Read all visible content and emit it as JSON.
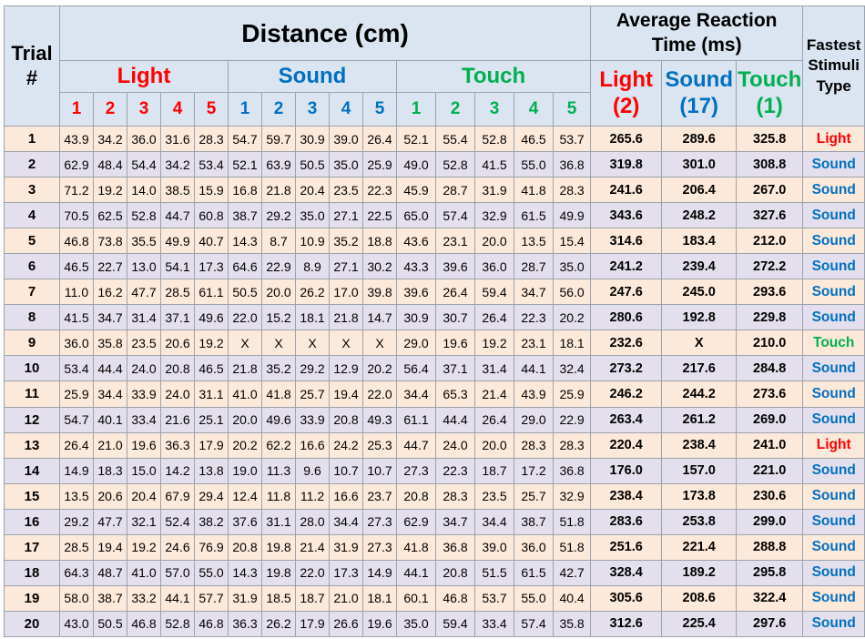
{
  "colors": {
    "light": "#ff0000",
    "sound": "#0070c0",
    "touch": "#00b050",
    "header_bg": "#dbe5f1",
    "row_odd": "#fde9d9",
    "row_even": "#e4dfec"
  },
  "header": {
    "trial": "Trial\n#",
    "distance": "Distance (cm)",
    "avg_reaction": "Average Reaction\nTime (ms)",
    "fastest": "Fastest\nStimuli\nType",
    "groups": [
      "Light",
      "Sound",
      "Touch"
    ],
    "sub_numbers": [
      "1",
      "2",
      "3",
      "4",
      "5"
    ],
    "avg_sub": [
      "Light\n(2)",
      "Sound\n(17)",
      "Touch\n(1)"
    ]
  },
  "rows": [
    {
      "trial": "1",
      "light": [
        "43.9",
        "34.2",
        "36.0",
        "31.6",
        "28.3"
      ],
      "sound": [
        "54.7",
        "59.7",
        "30.9",
        "39.0",
        "26.4"
      ],
      "touch": [
        "52.1",
        "55.4",
        "52.8",
        "46.5",
        "53.7"
      ],
      "avg": [
        "265.6",
        "289.6",
        "325.8"
      ],
      "fastest": "Light"
    },
    {
      "trial": "2",
      "light": [
        "62.9",
        "48.4",
        "54.4",
        "34.2",
        "53.4"
      ],
      "sound": [
        "52.1",
        "63.9",
        "50.5",
        "35.0",
        "25.9"
      ],
      "touch": [
        "49.0",
        "52.8",
        "41.5",
        "55.0",
        "36.8"
      ],
      "avg": [
        "319.8",
        "301.0",
        "308.8"
      ],
      "fastest": "Sound"
    },
    {
      "trial": "3",
      "light": [
        "71.2",
        "19.2",
        "14.0",
        "38.5",
        "15.9"
      ],
      "sound": [
        "16.8",
        "21.8",
        "20.4",
        "23.5",
        "22.3"
      ],
      "touch": [
        "45.9",
        "28.7",
        "31.9",
        "41.8",
        "28.3"
      ],
      "avg": [
        "241.6",
        "206.4",
        "267.0"
      ],
      "fastest": "Sound"
    },
    {
      "trial": "4",
      "light": [
        "70.5",
        "62.5",
        "52.8",
        "44.7",
        "60.8"
      ],
      "sound": [
        "38.7",
        "29.2",
        "35.0",
        "27.1",
        "22.5"
      ],
      "touch": [
        "65.0",
        "57.4",
        "32.9",
        "61.5",
        "49.9"
      ],
      "avg": [
        "343.6",
        "248.2",
        "327.6"
      ],
      "fastest": "Sound"
    },
    {
      "trial": "5",
      "light": [
        "46.8",
        "73.8",
        "35.5",
        "49.9",
        "40.7"
      ],
      "sound": [
        "14.3",
        "8.7",
        "10.9",
        "35.2",
        "18.8"
      ],
      "touch": [
        "43.6",
        "23.1",
        "20.0",
        "13.5",
        "15.4"
      ],
      "avg": [
        "314.6",
        "183.4",
        "212.0"
      ],
      "fastest": "Sound"
    },
    {
      "trial": "6",
      "light": [
        "46.5",
        "22.7",
        "13.0",
        "54.1",
        "17.3"
      ],
      "sound": [
        "64.6",
        "22.9",
        "8.9",
        "27.1",
        "30.2"
      ],
      "touch": [
        "43.3",
        "39.6",
        "36.0",
        "28.7",
        "35.0"
      ],
      "avg": [
        "241.2",
        "239.4",
        "272.2"
      ],
      "fastest": "Sound"
    },
    {
      "trial": "7",
      "light": [
        "11.0",
        "16.2",
        "47.7",
        "28.5",
        "61.1"
      ],
      "sound": [
        "50.5",
        "20.0",
        "26.2",
        "17.0",
        "39.8"
      ],
      "touch": [
        "39.6",
        "26.4",
        "59.4",
        "34.7",
        "56.0"
      ],
      "avg": [
        "247.6",
        "245.0",
        "293.6"
      ],
      "fastest": "Sound"
    },
    {
      "trial": "8",
      "light": [
        "41.5",
        "34.7",
        "31.4",
        "37.1",
        "49.6"
      ],
      "sound": [
        "22.0",
        "15.2",
        "18.1",
        "21.8",
        "14.7"
      ],
      "touch": [
        "30.9",
        "30.7",
        "26.4",
        "22.3",
        "20.2"
      ],
      "avg": [
        "280.6",
        "192.8",
        "229.8"
      ],
      "fastest": "Sound"
    },
    {
      "trial": "9",
      "light": [
        "36.0",
        "35.8",
        "23.5",
        "20.6",
        "19.2"
      ],
      "sound": [
        "X",
        "X",
        "X",
        "X",
        "X"
      ],
      "touch": [
        "29.0",
        "19.6",
        "19.2",
        "23.1",
        "18.1"
      ],
      "avg": [
        "232.6",
        "X",
        "210.0"
      ],
      "fastest": "Touch"
    },
    {
      "trial": "10",
      "light": [
        "53.4",
        "44.4",
        "24.0",
        "20.8",
        "46.5"
      ],
      "sound": [
        "21.8",
        "35.2",
        "29.2",
        "12.9",
        "20.2"
      ],
      "touch": [
        "56.4",
        "37.1",
        "31.4",
        "44.1",
        "32.4"
      ],
      "avg": [
        "273.2",
        "217.6",
        "284.8"
      ],
      "fastest": "Sound"
    },
    {
      "trial": "11",
      "light": [
        "25.9",
        "34.4",
        "33.9",
        "24.0",
        "31.1"
      ],
      "sound": [
        "41.0",
        "41.8",
        "25.7",
        "19.4",
        "22.0"
      ],
      "touch": [
        "34.4",
        "65.3",
        "21.4",
        "43.9",
        "25.9"
      ],
      "avg": [
        "246.2",
        "244.2",
        "273.6"
      ],
      "fastest": "Sound"
    },
    {
      "trial": "12",
      "light": [
        "54.7",
        "40.1",
        "33.4",
        "21.6",
        "25.1"
      ],
      "sound": [
        "20.0",
        "49.6",
        "33.9",
        "20.8",
        "49.3"
      ],
      "touch": [
        "61.1",
        "44.4",
        "26.4",
        "29.0",
        "22.9"
      ],
      "avg": [
        "263.4",
        "261.2",
        "269.0"
      ],
      "fastest": "Sound"
    },
    {
      "trial": "13",
      "light": [
        "26.4",
        "21.0",
        "19.6",
        "36.3",
        "17.9"
      ],
      "sound": [
        "20.2",
        "62.2",
        "16.6",
        "24.2",
        "25.3"
      ],
      "touch": [
        "44.7",
        "24.0",
        "20.0",
        "28.3",
        "28.3"
      ],
      "avg": [
        "220.4",
        "238.4",
        "241.0"
      ],
      "fastest": "Light"
    },
    {
      "trial": "14",
      "light": [
        "14.9",
        "18.3",
        "15.0",
        "14.2",
        "13.8"
      ],
      "sound": [
        "19.0",
        "11.3",
        "9.6",
        "10.7",
        "10.7"
      ],
      "touch": [
        "27.3",
        "22.3",
        "18.7",
        "17.2",
        "36.8"
      ],
      "avg": [
        "176.0",
        "157.0",
        "221.0"
      ],
      "fastest": "Sound"
    },
    {
      "trial": "15",
      "light": [
        "13.5",
        "20.6",
        "20.4",
        "67.9",
        "29.4"
      ],
      "sound": [
        "12.4",
        "11.8",
        "11.2",
        "16.6",
        "23.7"
      ],
      "touch": [
        "20.8",
        "28.3",
        "23.5",
        "25.7",
        "32.9"
      ],
      "avg": [
        "238.4",
        "173.8",
        "230.6"
      ],
      "fastest": "Sound"
    },
    {
      "trial": "16",
      "light": [
        "29.2",
        "47.7",
        "32.1",
        "52.4",
        "38.2"
      ],
      "sound": [
        "37.6",
        "31.1",
        "28.0",
        "34.4",
        "27.3"
      ],
      "touch": [
        "62.9",
        "34.7",
        "34.4",
        "38.7",
        "51.8"
      ],
      "avg": [
        "283.6",
        "253.8",
        "299.0"
      ],
      "fastest": "Sound"
    },
    {
      "trial": "17",
      "light": [
        "28.5",
        "19.4",
        "19.2",
        "24.6",
        "76.9"
      ],
      "sound": [
        "20.8",
        "19.8",
        "21.4",
        "31.9",
        "27.3"
      ],
      "touch": [
        "41.8",
        "36.8",
        "39.0",
        "36.0",
        "51.8"
      ],
      "avg": [
        "251.6",
        "221.4",
        "288.8"
      ],
      "fastest": "Sound"
    },
    {
      "trial": "18",
      "light": [
        "64.3",
        "48.7",
        "41.0",
        "57.0",
        "55.0"
      ],
      "sound": [
        "14.3",
        "19.8",
        "22.0",
        "17.3",
        "14.9"
      ],
      "touch": [
        "44.1",
        "20.8",
        "51.5",
        "61.5",
        "42.7"
      ],
      "avg": [
        "328.4",
        "189.2",
        "295.8"
      ],
      "fastest": "Sound"
    },
    {
      "trial": "19",
      "light": [
        "58.0",
        "38.7",
        "33.2",
        "44.1",
        "57.7"
      ],
      "sound": [
        "31.9",
        "18.5",
        "18.7",
        "21.0",
        "18.1"
      ],
      "touch": [
        "60.1",
        "46.8",
        "53.7",
        "55.0",
        "40.4"
      ],
      "avg": [
        "305.6",
        "208.6",
        "322.4"
      ],
      "fastest": "Sound"
    },
    {
      "trial": "20",
      "light": [
        "43.0",
        "50.5",
        "46.8",
        "52.8",
        "46.8"
      ],
      "sound": [
        "36.3",
        "26.2",
        "17.9",
        "26.6",
        "19.6"
      ],
      "touch": [
        "35.0",
        "59.4",
        "33.4",
        "57.4",
        "35.8"
      ],
      "avg": [
        "312.6",
        "225.4",
        "297.6"
      ],
      "fastest": "Sound"
    }
  ]
}
